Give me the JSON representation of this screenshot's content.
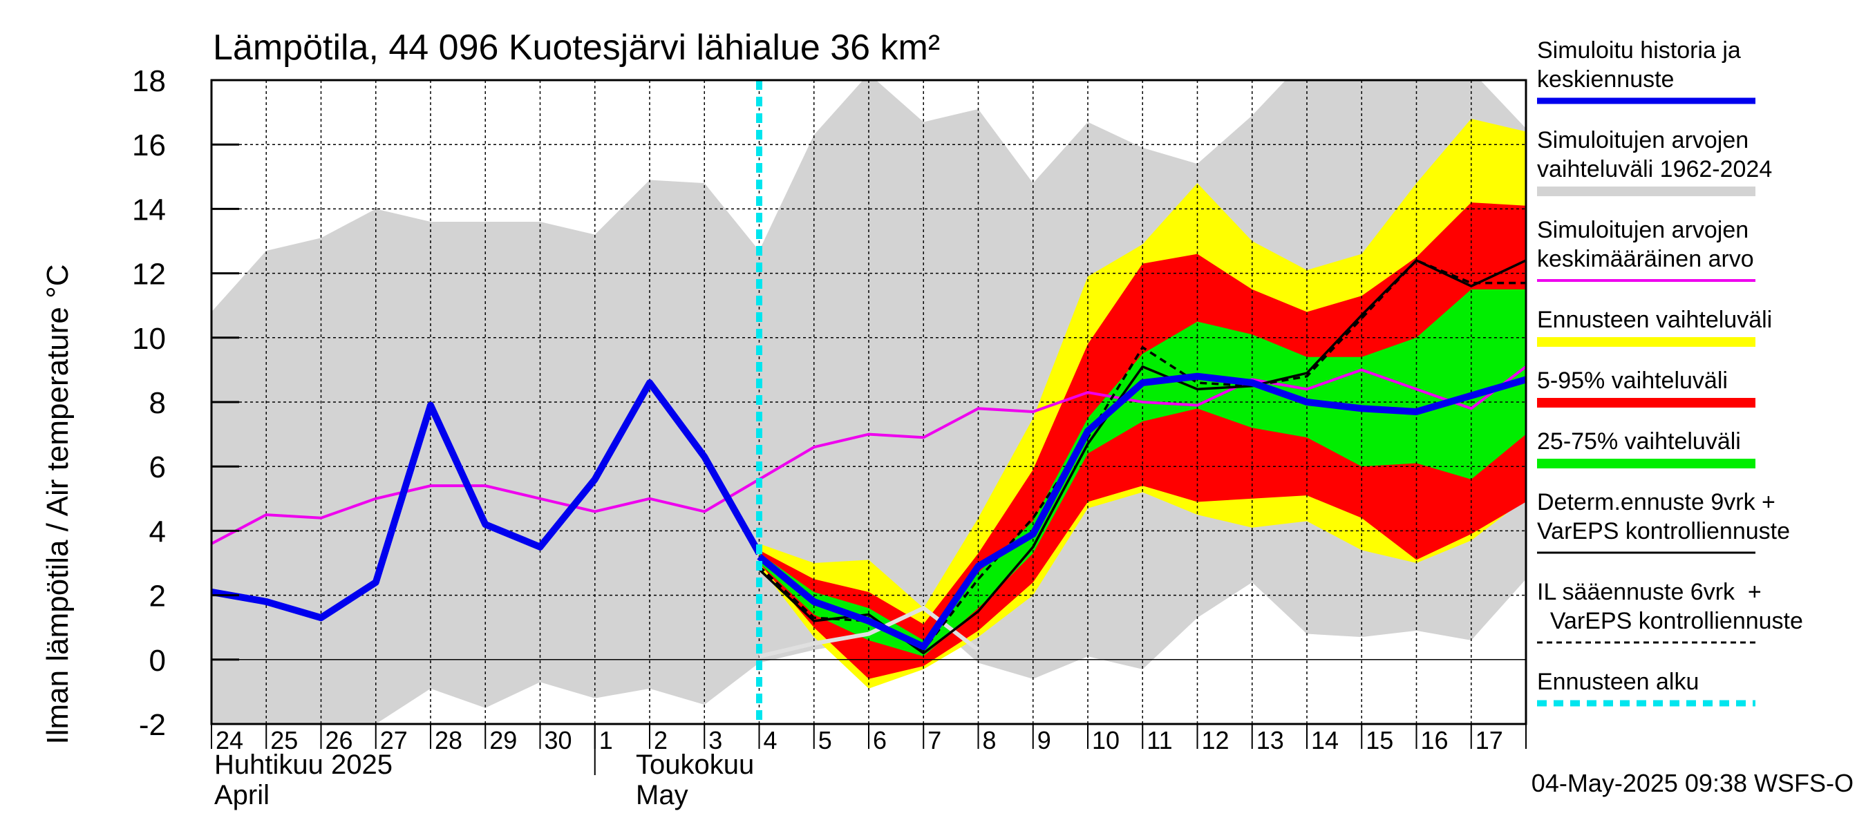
{
  "chart_data": {
    "type": "area",
    "title": "Lämpötila, 44 096 Kuotesjärvi lähialue 36 km²",
    "ylabel": "Ilman lämpötila / Air temperature   °C",
    "ylim": [
      -2,
      18
    ],
    "yticks": [
      -2,
      0,
      2,
      4,
      6,
      8,
      10,
      12,
      14,
      16,
      18
    ],
    "x_start": "2025-04-24",
    "x_end": "2025-05-18",
    "grid": true,
    "legend_position": "right",
    "day_labels": [
      "24",
      "25",
      "26",
      "27",
      "28",
      "29",
      "30",
      "1",
      "2",
      "3",
      "4",
      "5",
      "6",
      "7",
      "8",
      "9",
      "10",
      "11",
      "12",
      "13",
      "14",
      "15",
      "16",
      "17"
    ],
    "month_labels": [
      {
        "fi": "Huhtikuu  2025",
        "en": "April"
      },
      {
        "fi": "Toukokuu",
        "en": "May"
      }
    ],
    "forecast_start": "2025-05-04",
    "timestamp": "04-May-2025 09:38 WSFS-O",
    "colors": {
      "history": "#0000ee",
      "range_hist": "#d3d3d3",
      "mean": "#ee00ee",
      "forecast_range": "#ffff00",
      "p5_95": "#ff0000",
      "p25_75": "#00ee00",
      "determ": "#000000",
      "il": "#000000",
      "forecast_start": "#00e5ee",
      "sim_tail": "#e0e0e0"
    },
    "legend": [
      {
        "label": [
          "Simuloitu historia ja",
          "keskiennuste"
        ],
        "key": "history",
        "style": "thick"
      },
      {
        "label": [
          "Simuloitujen arvojen",
          "vaihteluväli 1962-2024"
        ],
        "key": "range_hist",
        "style": "band"
      },
      {
        "label": [
          "Simuloitujen arvojen",
          "keskimääräinen arvo"
        ],
        "key": "mean",
        "style": "thin"
      },
      {
        "label": [
          "Ennusteen vaihteluväli"
        ],
        "key": "forecast_range",
        "style": "band"
      },
      {
        "label": [
          "5-95% vaihteluväli"
        ],
        "key": "p5_95",
        "style": "band"
      },
      {
        "label": [
          "25-75% vaihteluväli"
        ],
        "key": "p25_75",
        "style": "band"
      },
      {
        "label": [
          "Determ.ennuste 9vrk +",
          "VarEPS kontrolliennuste"
        ],
        "key": "determ",
        "style": "line"
      },
      {
        "label": [
          "IL sääennuste 6vrk  +",
          "  VarEPS kontrolliennuste"
        ],
        "key": "il",
        "style": "dash"
      },
      {
        "label": [
          "Ennusteen alku"
        ],
        "key": "forecast_start",
        "style": "cyandash"
      }
    ],
    "series": {
      "hist_range": {
        "x": [
          0,
          1,
          2,
          3,
          4,
          5,
          6,
          7,
          8,
          9,
          10,
          11,
          12,
          13,
          14,
          15,
          16,
          17,
          18,
          19,
          20,
          21,
          22,
          23,
          24
        ],
        "upper": [
          10.8,
          12.7,
          13.1,
          14.0,
          13.6,
          13.6,
          13.6,
          13.2,
          14.9,
          14.8,
          12.7,
          16.3,
          18.2,
          16.7,
          17.1,
          14.8,
          16.7,
          15.9,
          15.4,
          16.9,
          18.7,
          18.7,
          18.6,
          18.3,
          16.5
        ],
        "lower": [
          -2.0,
          -2.0,
          -2.0,
          -2.0,
          -0.9,
          -1.5,
          -0.7,
          -1.2,
          -0.9,
          -1.4,
          -0.1,
          0.3,
          0.6,
          1.4,
          -0.1,
          -0.6,
          0.1,
          -0.3,
          1.3,
          2.4,
          0.8,
          0.7,
          0.9,
          0.6,
          2.5
        ]
      },
      "mean": {
        "x": [
          0,
          1,
          2,
          3,
          4,
          5,
          6,
          7,
          8,
          9,
          10,
          11,
          12,
          13,
          14,
          15,
          16,
          17,
          18,
          19,
          20,
          21,
          22,
          23,
          24
        ],
        "y": [
          3.6,
          4.5,
          4.4,
          5.0,
          5.4,
          5.4,
          5.0,
          4.6,
          5.0,
          4.6,
          5.6,
          6.6,
          7.0,
          6.9,
          7.8,
          7.7,
          8.3,
          8.0,
          7.9,
          8.7,
          8.4,
          9.0,
          8.4,
          7.8,
          9.1
        ]
      },
      "history": {
        "x": [
          0,
          1,
          2,
          3,
          4,
          5,
          6,
          7,
          8,
          9,
          10
        ],
        "y": [
          2.1,
          1.8,
          1.3,
          2.4,
          7.9,
          4.2,
          3.5,
          5.6,
          8.6,
          6.3,
          3.3
        ]
      },
      "forecast_range": {
        "x": [
          10,
          11,
          12,
          13,
          14,
          15,
          16,
          17,
          18,
          19,
          20,
          21,
          22,
          23,
          24
        ],
        "upper": [
          3.6,
          3.0,
          3.1,
          1.6,
          4.4,
          7.5,
          11.9,
          12.9,
          14.8,
          13.0,
          12.1,
          12.6,
          14.8,
          16.8,
          16.4
        ],
        "lower": [
          2.9,
          0.7,
          -0.9,
          -0.3,
          0.7,
          2.0,
          4.7,
          5.2,
          4.5,
          4.1,
          4.3,
          3.4,
          3.0,
          3.7,
          5.0
        ]
      },
      "p5_95": {
        "x": [
          10,
          11,
          12,
          13,
          14,
          15,
          16,
          17,
          18,
          19,
          20,
          21,
          22,
          23,
          24
        ],
        "upper": [
          3.4,
          2.5,
          2.1,
          1.1,
          3.3,
          5.9,
          9.8,
          12.3,
          12.6,
          11.5,
          10.8,
          11.3,
          12.5,
          14.2,
          14.1
        ],
        "lower": [
          3.0,
          1.0,
          -0.6,
          -0.2,
          0.9,
          2.4,
          4.9,
          5.4,
          4.9,
          5.0,
          5.1,
          4.4,
          3.1,
          3.9,
          4.9
        ]
      },
      "p25_75": {
        "x": [
          10,
          11,
          12,
          13,
          14,
          15,
          16,
          17,
          18,
          19,
          20,
          21,
          22,
          23,
          24
        ],
        "upper": [
          3.3,
          2.1,
          1.6,
          0.6,
          2.7,
          4.3,
          7.5,
          9.5,
          10.5,
          10.1,
          9.4,
          9.4,
          10.0,
          11.5,
          11.5
        ],
        "lower": [
          3.0,
          1.4,
          0.6,
          0.1,
          1.6,
          3.3,
          6.4,
          7.4,
          7.8,
          7.2,
          6.9,
          6.0,
          6.1,
          5.6,
          7.0
        ]
      },
      "median": {
        "x": [
          10,
          11,
          12,
          13,
          14,
          15,
          16,
          17,
          18,
          19,
          20,
          21,
          22,
          23,
          24
        ],
        "y": [
          3.2,
          1.8,
          1.2,
          0.4,
          2.9,
          3.9,
          7.1,
          8.6,
          8.8,
          8.6,
          8.0,
          7.8,
          7.7,
          8.2,
          8.7
        ]
      },
      "determ": {
        "x": [
          10,
          11,
          12,
          13,
          14,
          15,
          16,
          17,
          18,
          19,
          20,
          21,
          22,
          23,
          24
        ],
        "y": [
          2.8,
          1.2,
          1.4,
          0.2,
          1.5,
          3.5,
          6.7,
          9.1,
          8.4,
          8.5,
          8.9,
          10.7,
          12.4,
          11.6,
          12.4
        ]
      },
      "il": {
        "x": [
          10,
          11,
          12,
          13,
          14,
          15,
          16,
          17,
          18,
          19,
          20,
          21,
          22,
          23,
          24
        ],
        "y": [
          2.9,
          1.3,
          1.2,
          0.3,
          2.5,
          4.4,
          6.9,
          9.7,
          8.6,
          8.5,
          8.8,
          10.6,
          12.4,
          11.7,
          11.7
        ]
      },
      "sim_tail": {
        "x": [
          10,
          11,
          12,
          13,
          14
        ],
        "y": [
          0.1,
          0.5,
          0.8,
          1.6,
          0.3
        ]
      }
    }
  }
}
